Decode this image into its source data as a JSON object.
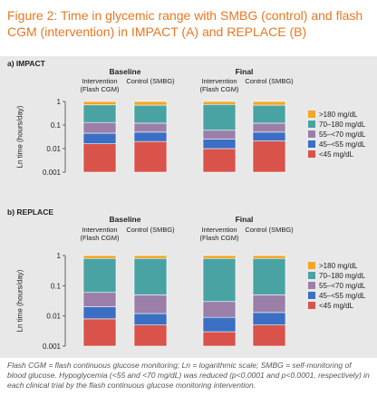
{
  "title": "Figure 2: Time in glycemic range with SMBG (control) and flash CGM (intervention) in IMPACT (A) and REPLACE (B)",
  "caption": "Flash CGM = flash continuous glucose monitoring; Ln = logarithmic scale; SMBG = self-monitoring of blood glucose. Hypoglycemia (<55 and <70 mg/dL) was reduced (p<0.0001 and p<0.0001, respectively) in each clinical trial by the flash continuous glucose monitoring intervention.",
  "chart_data": [
    {
      "type": "bar",
      "stacked": true,
      "yscale": "log",
      "title": "a) IMPACT",
      "y_label": "Ln time (hours/day)",
      "groups": [
        "Baseline",
        "Final"
      ],
      "categories": [
        "Intervention (Flash CGM)",
        "Control (SMBG)",
        "Intervention (Flash CGM)",
        "Control (SMBG)"
      ],
      "ylim": [
        0.001,
        1
      ],
      "yticks": [
        0.001,
        0.01,
        0.1,
        1
      ],
      "series": [
        {
          "name": "<45 mg/dL",
          "color": "#d9534a",
          "values": [
            0.016,
            0.02,
            0.01,
            0.021
          ]
        },
        {
          "name": "45–<55 mg/dL",
          "color": "#3a6fc4",
          "values": [
            0.029,
            0.03,
            0.015,
            0.029
          ]
        },
        {
          "name": "55–<70 mg/dL",
          "color": "#9b7fa8",
          "values": [
            0.083,
            0.07,
            0.035,
            0.07
          ]
        },
        {
          "name": "70–180 mg/dL",
          "color": "#4aa3a3",
          "values": [
            0.59,
            0.58,
            0.69,
            0.58
          ]
        },
        {
          "name": ">180 mg/dL",
          "color": "#f5a623",
          "values": [
            0.28,
            0.3,
            0.25,
            0.3
          ]
        }
      ]
    },
    {
      "type": "bar",
      "stacked": true,
      "yscale": "log",
      "title": "b) REPLACE",
      "y_label": "Ln time (hours/day)",
      "groups": [
        "Baseline",
        "Final"
      ],
      "categories": [
        "Intervention (Flash CGM)",
        "Control (SMBG)",
        "Intervention (Flash CGM)",
        "Control (SMBG)"
      ],
      "ylim": [
        0.001,
        1
      ],
      "yticks": [
        0.001,
        0.01,
        0.1,
        1
      ],
      "series": [
        {
          "name": "<45 mg/dL",
          "color": "#d9534a",
          "values": [
            0.008,
            0.005,
            0.003,
            0.005
          ]
        },
        {
          "name": "45–<55 mg/dL",
          "color": "#3a6fc4",
          "values": [
            0.012,
            0.007,
            0.006,
            0.008
          ]
        },
        {
          "name": "55–<70 mg/dL",
          "color": "#9b7fa8",
          "values": [
            0.04,
            0.038,
            0.021,
            0.037
          ]
        },
        {
          "name": "70–180 mg/dL",
          "color": "#4aa3a3",
          "values": [
            0.74,
            0.75,
            0.77,
            0.75
          ]
        },
        {
          "name": ">180 mg/dL",
          "color": "#f5a623",
          "values": [
            0.2,
            0.2,
            0.2,
            0.2
          ]
        }
      ]
    }
  ]
}
